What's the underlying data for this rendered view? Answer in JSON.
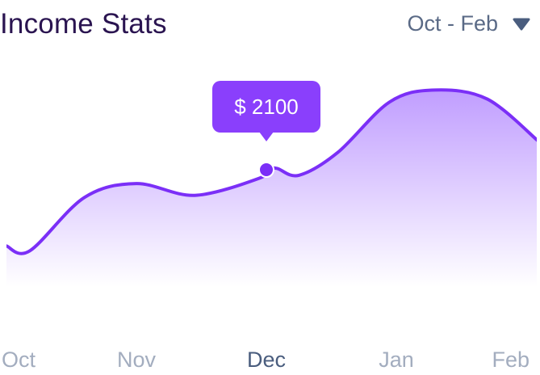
{
  "header": {
    "title": "Income Stats",
    "range_label": "Oct - Feb",
    "range_icon": "chevron-down-icon"
  },
  "colors": {
    "line": "#7b2ff7",
    "fill_top": "#b58cff",
    "tooltip_bg": "#8a3ffc",
    "tooltip_text": "#ffffff",
    "active_label": "#4a5d7e",
    "inactive_label": "#a3adbf",
    "title": "#2a1450"
  },
  "chart_data": {
    "type": "area",
    "x": [
      "Oct",
      "Nov",
      "Dec",
      "Jan",
      "Feb"
    ],
    "active_x": "Dec",
    "points": [
      {
        "x": 0.0,
        "y": 1000
      },
      {
        "x": 0.18,
        "y": 930
      },
      {
        "x": 0.6,
        "y": 1700
      },
      {
        "x": 1.0,
        "y": 1900
      },
      {
        "x": 1.45,
        "y": 1730
      },
      {
        "x": 1.95,
        "y": 1980
      },
      {
        "x": 2.0,
        "y": 2100
      },
      {
        "x": 2.08,
        "y": 2120
      },
      {
        "x": 2.25,
        "y": 2020
      },
      {
        "x": 2.55,
        "y": 2350
      },
      {
        "x": 2.95,
        "y": 3080
      },
      {
        "x": 3.3,
        "y": 3250
      },
      {
        "x": 3.7,
        "y": 3120
      },
      {
        "x": 4.1,
        "y": 2500
      }
    ],
    "highlight": {
      "x": 2.0,
      "y": 2100,
      "label": "$ 2100"
    },
    "ylim": [
      0,
      3500
    ],
    "grid": false,
    "legend": "none"
  }
}
